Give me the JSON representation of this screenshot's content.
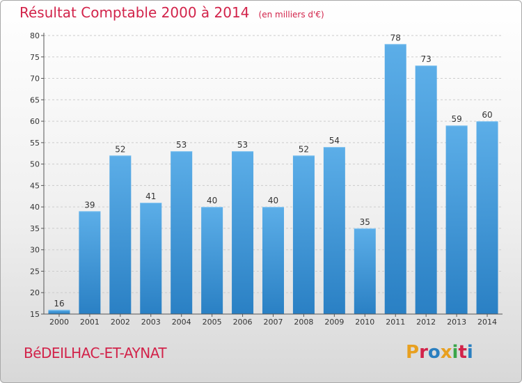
{
  "header": {
    "title": "Résultat Comptable 2000 à 2014",
    "subtitle": "(en milliers d'€)"
  },
  "footer": {
    "commune": "BéDEILHAC-ET-AYNAT",
    "brand": "Proxiti",
    "brand_colors": [
      "#e8a020",
      "#d2234a",
      "#2a7fc0",
      "#e8a020",
      "#3aa64a",
      "#d2234a",
      "#2a7fc0"
    ]
  },
  "colors": {
    "bar_top": "#5caee8",
    "bar_bottom": "#2a80c4",
    "grid": "#cccccc"
  },
  "chart_data": {
    "type": "bar",
    "title": "Résultat Comptable 2000 à 2014",
    "subtitle": "(en milliers d'€)",
    "categories": [
      "2000",
      "2001",
      "2002",
      "2003",
      "2004",
      "2005",
      "2006",
      "2007",
      "2008",
      "2009",
      "2010",
      "2011",
      "2012",
      "2013",
      "2014"
    ],
    "values": [
      16,
      39,
      52,
      41,
      53,
      40,
      53,
      40,
      52,
      54,
      35,
      78,
      73,
      59,
      60
    ],
    "ylim": [
      15,
      80
    ],
    "yticks": [
      15,
      20,
      25,
      30,
      35,
      40,
      45,
      50,
      55,
      60,
      65,
      70,
      75,
      80
    ],
    "grid": "horizontal dashed",
    "legend": "none"
  }
}
